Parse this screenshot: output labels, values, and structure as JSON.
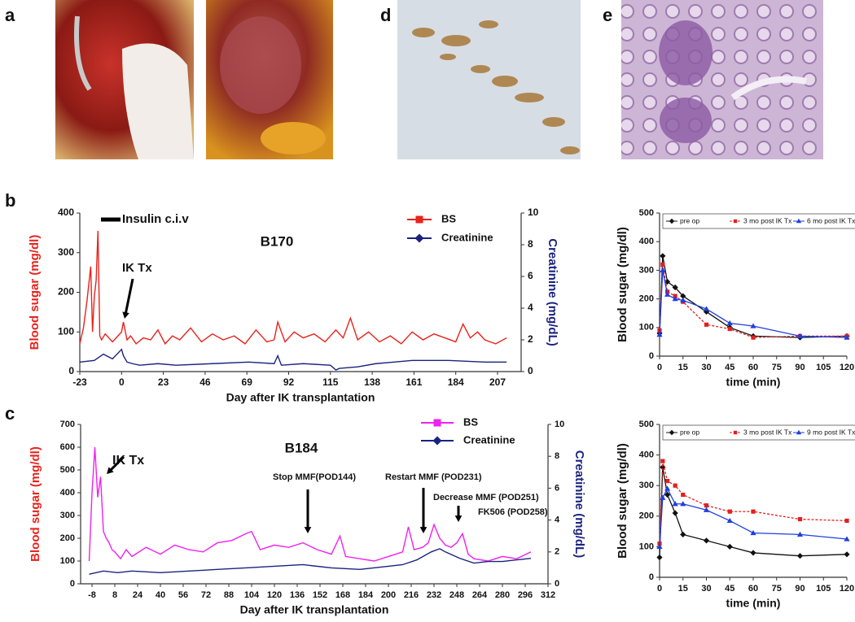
{
  "panel_labels": {
    "a": "a",
    "b": "b",
    "c": "c",
    "d": "d",
    "e": "e"
  },
  "chart_data": [
    {
      "type": "line",
      "title": "B170",
      "xlabel": "Day after IK transplantation",
      "ylabel": "Blood sugar (mg/dl)",
      "y2label": "Creatinine (mg/dL)",
      "xlim": [
        -23,
        220
      ],
      "ylim": [
        0,
        400
      ],
      "y2lim": [
        0,
        10
      ],
      "xticks": [
        -23,
        0,
        23,
        46,
        69,
        92,
        115,
        138,
        161,
        184,
        207
      ],
      "yticks": [
        0,
        100,
        200,
        300,
        400
      ],
      "y2ticks": [
        0,
        2,
        4,
        6,
        8,
        10
      ],
      "annotations": [
        "Insulin c.i.v",
        "IK Tx"
      ],
      "series": [
        {
          "name": "BS",
          "color": "#e8221c",
          "marker": "square",
          "x": [
            -23,
            -21,
            -19,
            -17,
            -16,
            -15,
            -14,
            -13,
            -12,
            -11,
            -9,
            -5,
            0,
            1,
            3,
            5,
            8,
            12,
            16,
            20,
            24,
            28,
            32,
            38,
            44,
            50,
            56,
            62,
            68,
            74,
            80,
            84,
            86,
            90,
            95,
            100,
            106,
            112,
            118,
            122,
            126,
            130,
            136,
            142,
            148,
            154,
            160,
            166,
            172,
            178,
            184,
            188,
            192,
            196,
            200,
            206,
            212
          ],
          "values": [
            70,
            110,
            180,
            265,
            100,
            190,
            230,
            355,
            90,
            80,
            95,
            75,
            100,
            125,
            80,
            90,
            70,
            85,
            80,
            105,
            70,
            90,
            80,
            110,
            75,
            95,
            80,
            90,
            70,
            105,
            75,
            80,
            125,
            75,
            100,
            85,
            95,
            75,
            105,
            85,
            135,
            80,
            100,
            75,
            90,
            70,
            100,
            80,
            95,
            85,
            75,
            120,
            85,
            100,
            80,
            70,
            85
          ]
        },
        {
          "name": "Creatinine",
          "color": "#1a237e",
          "marker": "diamond",
          "axis": "y2",
          "x": [
            -23,
            -15,
            -10,
            -5,
            0,
            1,
            3,
            6,
            10,
            20,
            30,
            50,
            70,
            84,
            86,
            88,
            100,
            115,
            118,
            120,
            130,
            140,
            150,
            160,
            180,
            200,
            212
          ],
          "values": [
            0.6,
            0.7,
            1.1,
            0.8,
            1.4,
            1.0,
            0.6,
            0.5,
            0.4,
            0.5,
            0.4,
            0.5,
            0.6,
            0.5,
            1.0,
            0.4,
            0.5,
            0.4,
            0.1,
            0.2,
            0.3,
            0.5,
            0.6,
            0.7,
            0.7,
            0.6,
            0.6
          ]
        }
      ]
    },
    {
      "type": "line",
      "title": "B184",
      "xlabel": "Day after IK transplantation",
      "ylabel": "Blood sugar (mg/dl)",
      "y2label": "Creatinine (mg/dL)",
      "xlim": [
        -16,
        312
      ],
      "ylim": [
        0,
        700
      ],
      "y2lim": [
        0,
        10
      ],
      "xticks": [
        -8,
        8,
        24,
        40,
        56,
        72,
        88,
        104,
        120,
        136,
        152,
        168,
        184,
        200,
        216,
        232,
        248,
        264,
        280,
        296,
        312
      ],
      "yticks": [
        0,
        100,
        200,
        300,
        400,
        500,
        600,
        700
      ],
      "y2ticks": [
        0,
        2,
        4,
        6,
        8,
        10
      ],
      "annotations": [
        "IK Tx",
        "Stop MMF(POD144)",
        "Restart MMF (POD231)",
        "Decrease MMF (POD251)",
        "FK506 (POD258)"
      ],
      "series": [
        {
          "name": "BS",
          "color": "#ee22ee",
          "marker": "square",
          "x": [
            -10,
            -8,
            -6,
            -4,
            -2,
            0,
            2,
            4,
            6,
            8,
            12,
            16,
            20,
            30,
            40,
            50,
            60,
            70,
            80,
            90,
            100,
            104,
            110,
            120,
            130,
            140,
            150,
            160,
            166,
            170,
            180,
            190,
            200,
            210,
            214,
            218,
            224,
            228,
            232,
            236,
            240,
            244,
            248,
            252,
            256,
            260,
            270,
            280,
            290,
            300
          ],
          "values": [
            100,
            400,
            600,
            380,
            470,
            230,
            200,
            180,
            150,
            140,
            110,
            150,
            120,
            160,
            130,
            170,
            150,
            140,
            180,
            190,
            220,
            230,
            150,
            170,
            160,
            180,
            150,
            130,
            210,
            120,
            110,
            100,
            120,
            140,
            250,
            150,
            160,
            180,
            260,
            200,
            170,
            160,
            180,
            220,
            130,
            110,
            100,
            120,
            110,
            140
          ]
        },
        {
          "name": "Creatinine",
          "color": "#1a237e",
          "marker": "diamond",
          "axis": "y2",
          "x": [
            -10,
            0,
            10,
            20,
            40,
            60,
            80,
            100,
            120,
            140,
            160,
            180,
            200,
            210,
            220,
            230,
            236,
            240,
            250,
            260,
            270,
            280,
            290,
            300
          ],
          "values": [
            0.6,
            0.8,
            0.7,
            0.8,
            0.7,
            0.8,
            0.9,
            1.0,
            1.1,
            1.2,
            1.0,
            0.9,
            1.1,
            1.2,
            1.5,
            2.0,
            2.2,
            2.0,
            1.6,
            1.3,
            1.4,
            1.4,
            1.5,
            1.6
          ]
        }
      ]
    },
    {
      "type": "line",
      "xlabel": "time (min)",
      "ylabel": "Blood sugar (mg/dl)",
      "xlim": [
        0,
        120
      ],
      "ylim": [
        0,
        500
      ],
      "xticks": [
        0,
        15,
        30,
        45,
        60,
        75,
        90,
        105,
        120
      ],
      "yticks": [
        0,
        100,
        200,
        300,
        400,
        500
      ],
      "markers": true,
      "series": [
        {
          "name": "pre op",
          "color": "#111111",
          "marker": "diamond",
          "x": [
            0,
            2,
            5,
            10,
            15,
            30,
            45,
            60,
            90,
            120
          ],
          "values": [
            80,
            350,
            260,
            240,
            210,
            155,
            100,
            70,
            65,
            70
          ]
        },
        {
          "name": "3 mo post IK Tx",
          "color": "#e02020",
          "marker": "square",
          "dash": true,
          "x": [
            0,
            2,
            5,
            10,
            15,
            30,
            45,
            60,
            90,
            120
          ],
          "values": [
            90,
            320,
            225,
            210,
            190,
            110,
            95,
            65,
            70,
            70
          ]
        },
        {
          "name": "6 mo post IK Tx",
          "color": "#1f3fe0",
          "marker": "triangle",
          "x": [
            0,
            2,
            5,
            10,
            15,
            30,
            45,
            60,
            90,
            120
          ],
          "values": [
            75,
            300,
            215,
            200,
            195,
            165,
            115,
            105,
            70,
            65
          ]
        }
      ]
    },
    {
      "type": "line",
      "xlabel": "time (min)",
      "ylabel": "Blood sugar (mg/dl)",
      "xlim": [
        0,
        120
      ],
      "ylim": [
        0,
        500
      ],
      "xticks": [
        0,
        15,
        30,
        45,
        60,
        75,
        90,
        105,
        120
      ],
      "yticks": [
        0,
        100,
        200,
        300,
        400,
        500
      ],
      "markers": true,
      "series": [
        {
          "name": "pre op",
          "color": "#111111",
          "marker": "diamond",
          "x": [
            0,
            2,
            5,
            10,
            15,
            30,
            45,
            60,
            90,
            120
          ],
          "values": [
            65,
            360,
            270,
            210,
            140,
            120,
            100,
            80,
            70,
            75
          ]
        },
        {
          "name": "3 mo post IK Tx",
          "color": "#e02020",
          "marker": "square",
          "dash": true,
          "x": [
            0,
            2,
            5,
            10,
            15,
            30,
            45,
            60,
            90,
            120
          ],
          "values": [
            110,
            380,
            315,
            300,
            270,
            235,
            215,
            215,
            190,
            185
          ]
        },
        {
          "name": "9 mo post IK Tx",
          "color": "#1f3fe0",
          "marker": "triangle",
          "x": [
            0,
            2,
            5,
            10,
            15,
            30,
            45,
            60,
            90,
            120
          ],
          "values": [
            100,
            260,
            290,
            240,
            240,
            220,
            185,
            145,
            140,
            125
          ]
        }
      ]
    }
  ]
}
